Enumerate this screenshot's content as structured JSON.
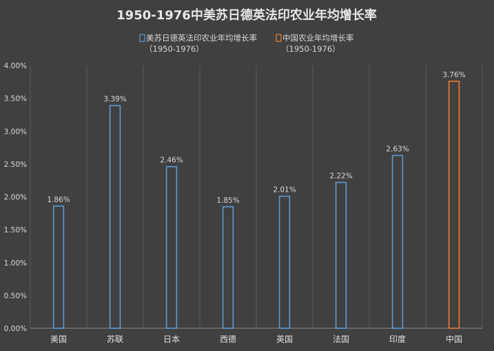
{
  "chart_data": {
    "type": "bar",
    "title": "1950-1976中美苏日德英法印农业年均增长率",
    "categories": [
      "美国",
      "苏联",
      "日本",
      "西德",
      "英国",
      "法国",
      "印度",
      "中国"
    ],
    "values": [
      1.86,
      3.39,
      2.46,
      1.85,
      2.01,
      2.22,
      2.63,
      3.76
    ],
    "data_labels": [
      "1.86%",
      "3.39%",
      "2.46%",
      "1.85%",
      "2.01%",
      "2.22%",
      "2.63%",
      "3.76%"
    ],
    "series_index": [
      0,
      0,
      0,
      0,
      0,
      0,
      0,
      1
    ],
    "ylim": [
      0,
      4
    ],
    "y_ticks": [
      0,
      0.5,
      1,
      1.5,
      2,
      2.5,
      3,
      3.5,
      4
    ],
    "y_tick_labels": [
      "0.00%",
      "0.50%",
      "1.00%",
      "1.50%",
      "2.00%",
      "2.50%",
      "3.00%",
      "3.50%",
      "4.00%"
    ],
    "grid": "vertical",
    "legend_position": "top",
    "legend": [
      {
        "line1": "美苏日德英法印农业年均增长率",
        "line2": "（1950-1976）",
        "color": "#5b9bd5"
      },
      {
        "line1": "中国农业年均增长率",
        "line2": "（1950-1976）",
        "color": "#ed7d31"
      }
    ]
  }
}
